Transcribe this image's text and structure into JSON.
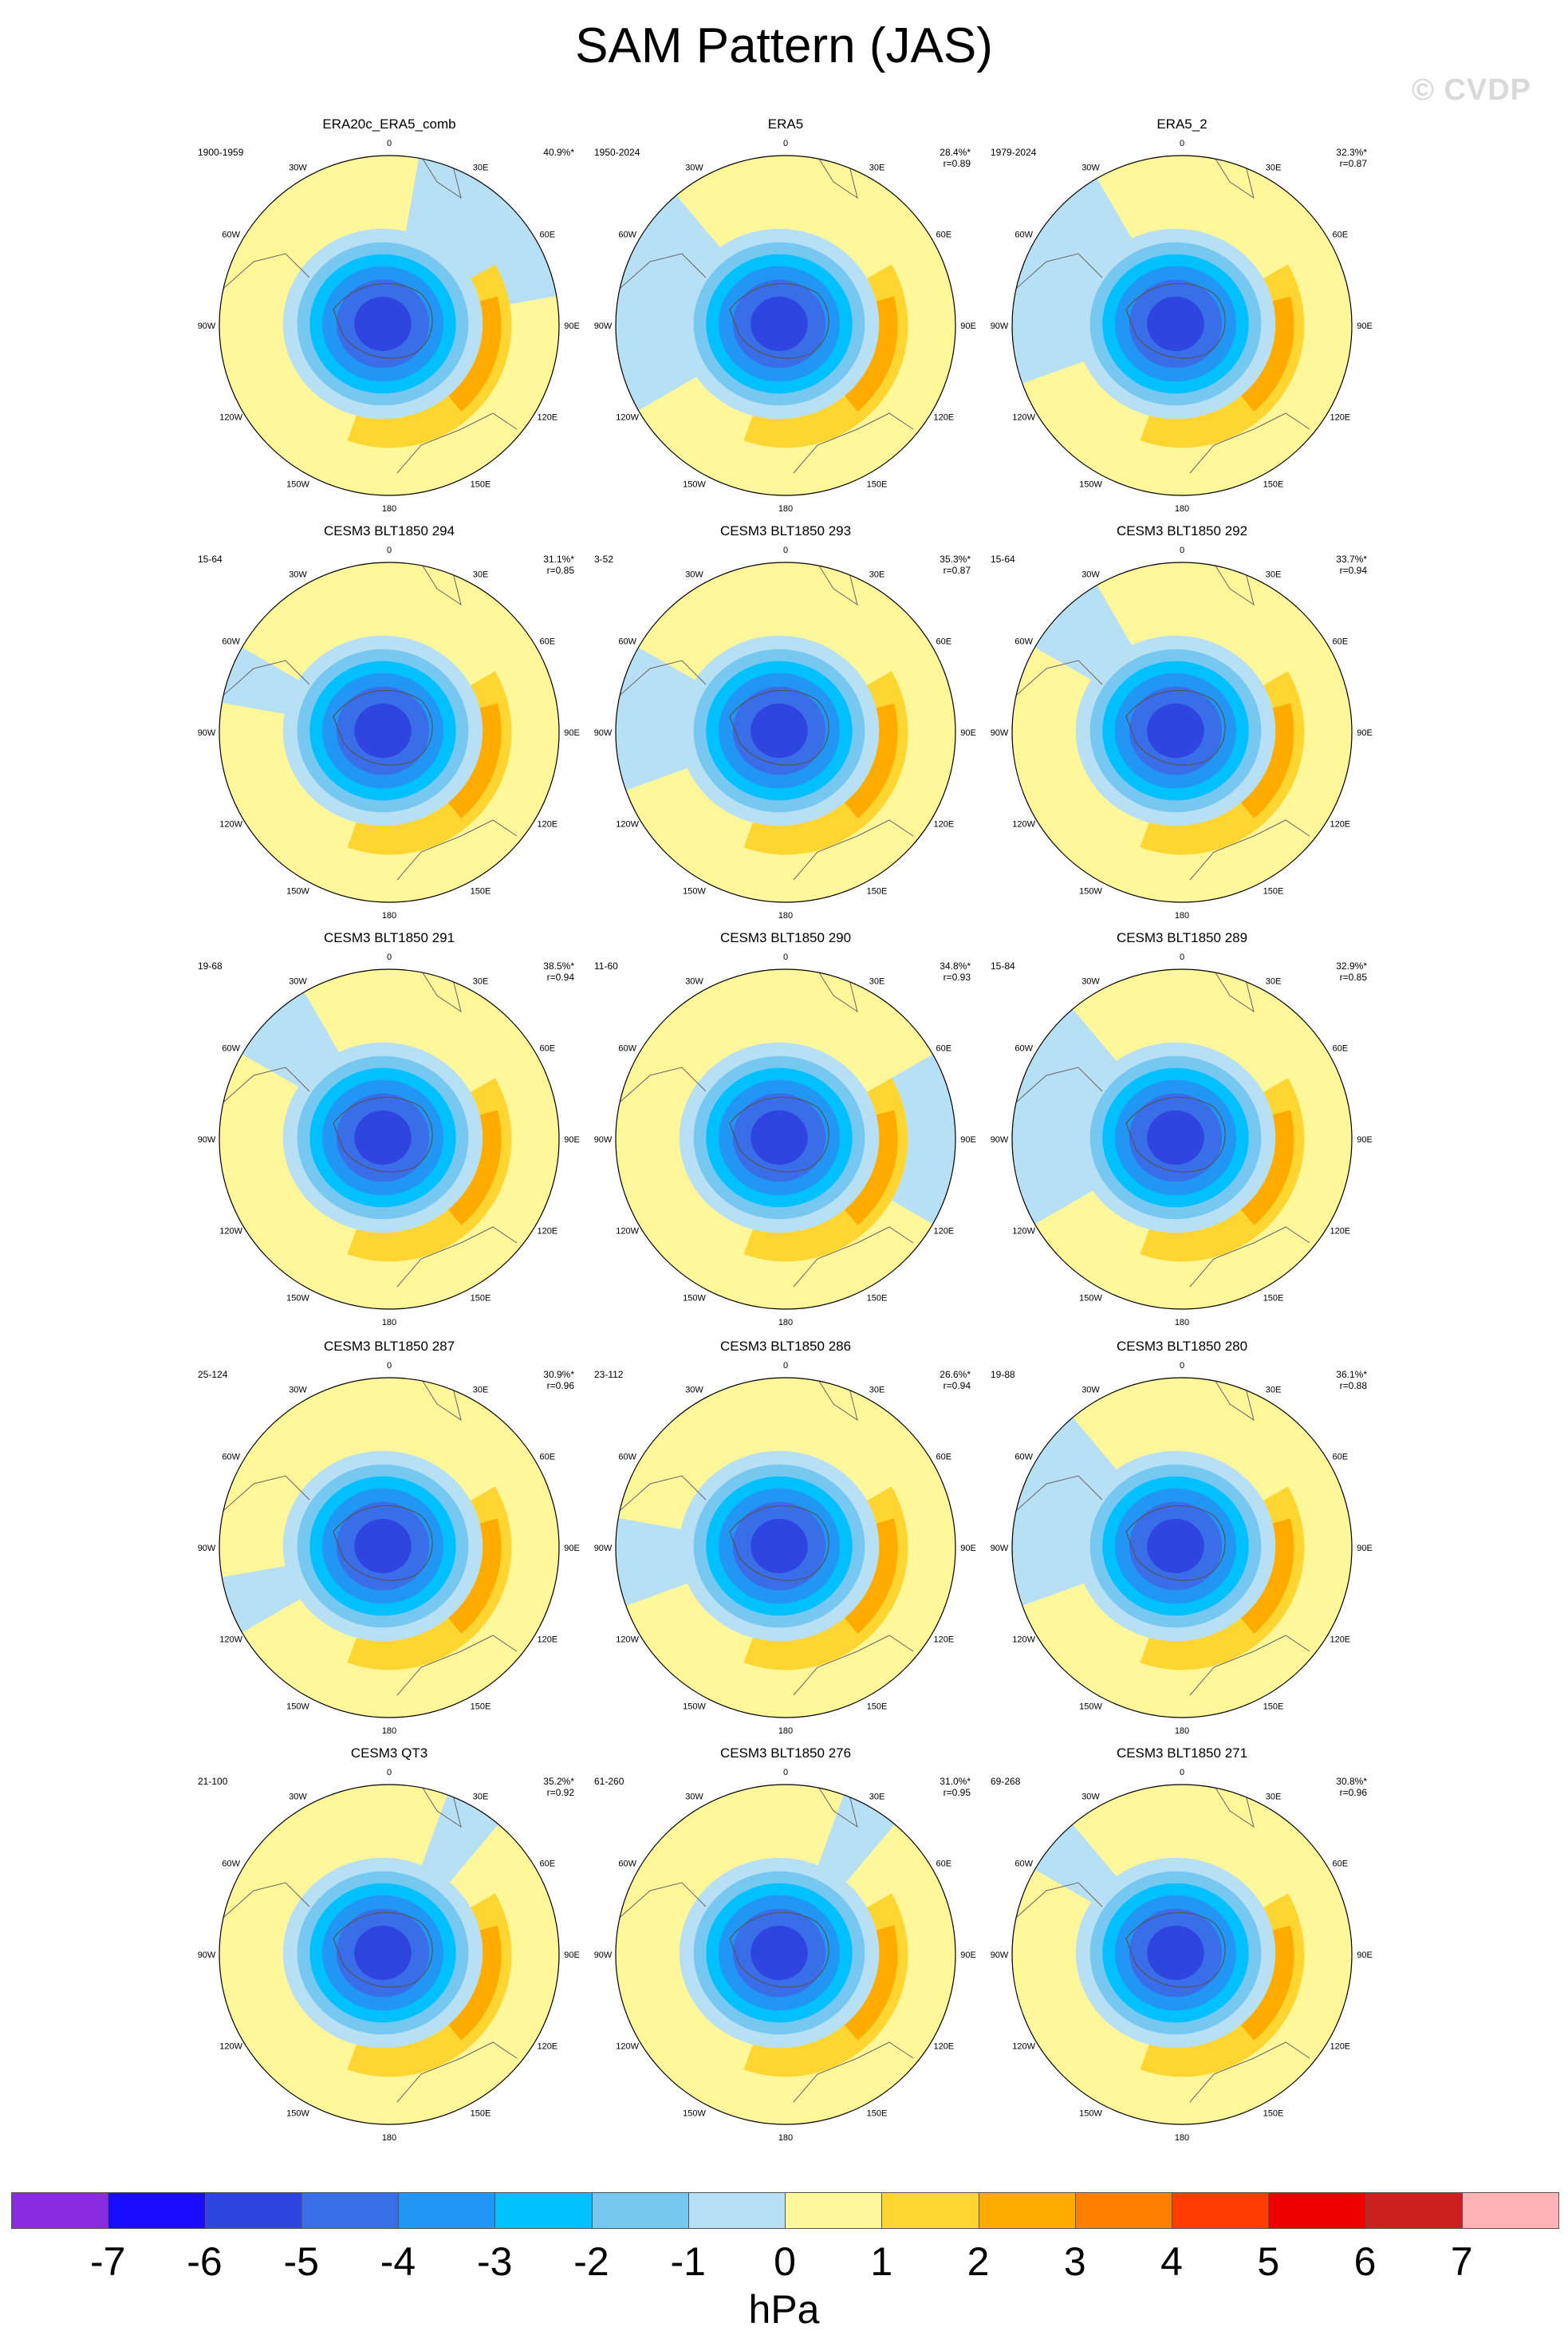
{
  "title": "SAM Pattern (JAS)",
  "watermark": "© CVDP",
  "longitude_labels": [
    "0",
    "30E",
    "60E",
    "90E",
    "120E",
    "150E",
    "180",
    "150W",
    "120W",
    "90W",
    "60W",
    "30W"
  ],
  "panels": [
    {
      "title": "ERA20c_ERA5_comb",
      "range": "1900-1959",
      "pct": "40.9%*",
      "r": ""
    },
    {
      "title": "ERA5",
      "range": "1950-2024",
      "pct": "28.4%*",
      "r": "r=0.89"
    },
    {
      "title": "ERA5_2",
      "range": "1979-2024",
      "pct": "32.3%*",
      "r": "r=0.87"
    },
    {
      "title": "CESM3 BLT1850 294",
      "range": "15-64",
      "pct": "31.1%*",
      "r": "r=0.85"
    },
    {
      "title": "CESM3 BLT1850 293",
      "range": "3-52",
      "pct": "35.3%*",
      "r": "r=0.87"
    },
    {
      "title": "CESM3 BLT1850 292",
      "range": "15-64",
      "pct": "33.7%*",
      "r": "r=0.94"
    },
    {
      "title": "CESM3 BLT1850 291",
      "range": "19-68",
      "pct": "38.5%*",
      "r": "r=0.94"
    },
    {
      "title": "CESM3 BLT1850 290",
      "range": "11-60",
      "pct": "34.8%*",
      "r": "r=0.93"
    },
    {
      "title": "CESM3 BLT1850 289",
      "range": "15-84",
      "pct": "32.9%*",
      "r": "r=0.85"
    },
    {
      "title": "CESM3 BLT1850 287",
      "range": "25-124",
      "pct": "30.9%*",
      "r": "r=0.96"
    },
    {
      "title": "CESM3 BLT1850 286",
      "range": "23-112",
      "pct": "26.6%*",
      "r": "r=0.94"
    },
    {
      "title": "CESM3 BLT1850 280",
      "range": "19-88",
      "pct": "36.1%*",
      "r": "r=0.88"
    },
    {
      "title": "CESM3 QT3",
      "range": "21-100",
      "pct": "35.2%*",
      "r": "r=0.92"
    },
    {
      "title": "CESM3 BLT1850 276",
      "range": "61-260",
      "pct": "31.0%*",
      "r": "r=0.95"
    },
    {
      "title": "CESM3 BLT1850 271",
      "range": "69-268",
      "pct": "30.8%*",
      "r": "r=0.96"
    }
  ],
  "colorbar": {
    "units": "hPa",
    "labels": [
      "-7",
      "-6",
      "-5",
      "-4",
      "-3",
      "-2",
      "-1",
      "0",
      "1",
      "2",
      "3",
      "4",
      "5",
      "6",
      "7"
    ],
    "colors": [
      "#8a2be2",
      "#1a0dff",
      "#2f45e0",
      "#3a6ee8",
      "#2196f5",
      "#00c0ff",
      "#77c8f0",
      "#b8e0f5",
      "#fff79a",
      "#ffd531",
      "#ffab00",
      "#ff7f00",
      "#ff3d00",
      "#ee0000",
      "#cc1f1f",
      "#ffb3b3"
    ]
  },
  "colors": {
    "neg1": "#b8e0f5",
    "neg2": "#77c8f0",
    "neg3": "#00c0ff",
    "neg4": "#2196f5",
    "neg5": "#3a6ee8",
    "neg6": "#2f45e0",
    "neg7": "#1a0dff",
    "pos0": "#fff79a",
    "pos1": "#ffd531",
    "pos2": "#ffab00",
    "pos3": "#ff7f00"
  }
}
